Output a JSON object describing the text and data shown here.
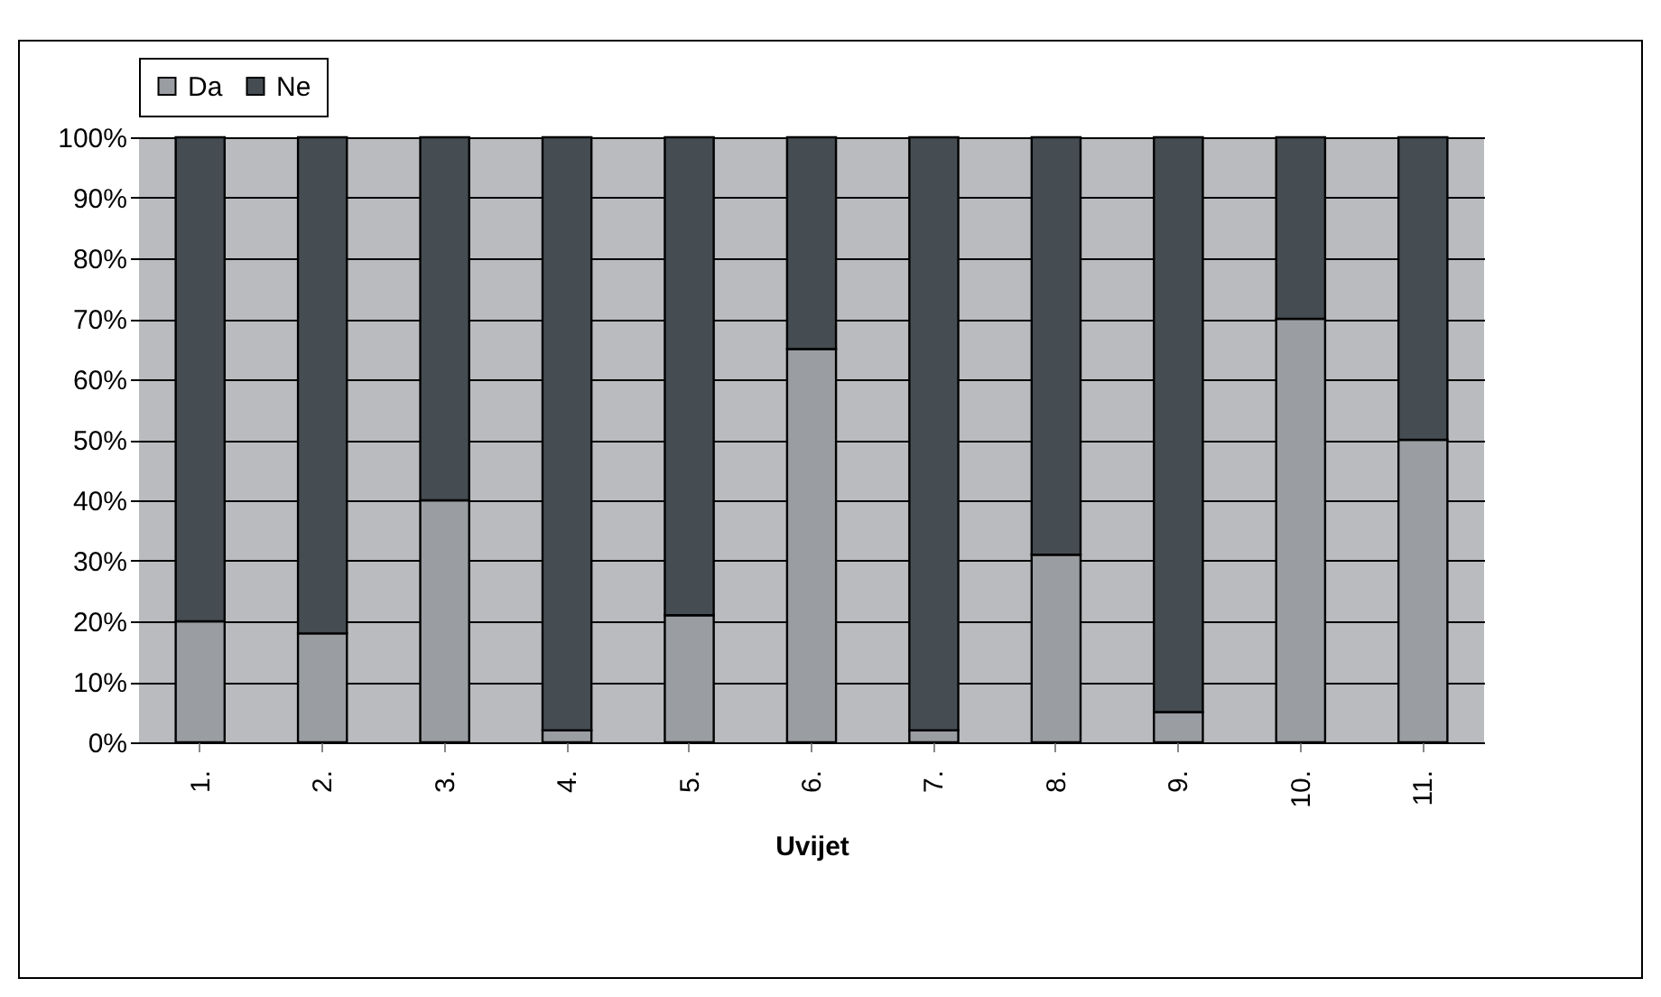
{
  "chart_data": {
    "type": "bar",
    "stacked": true,
    "xlabel": "Uvijet",
    "categories": [
      "1.",
      "2.",
      "3.",
      "4.",
      "5.",
      "6.",
      "7.",
      "8.",
      "9.",
      "10.",
      "11."
    ],
    "series": [
      {
        "name": "Da",
        "color": "#9a9ea3",
        "values": [
          20,
          18,
          40,
          2,
          21,
          65,
          2,
          31,
          5,
          70,
          50
        ]
      },
      {
        "name": "Ne",
        "color": "#454d53",
        "values": [
          80,
          82,
          60,
          98,
          79,
          35,
          98,
          69,
          95,
          30,
          50
        ]
      }
    ],
    "ylim": [
      0,
      100
    ],
    "yticks": [
      {
        "value": 0,
        "label": "0%"
      },
      {
        "value": 10,
        "label": "10%"
      },
      {
        "value": 20,
        "label": "20%"
      },
      {
        "value": 30,
        "label": "30%"
      },
      {
        "value": 40,
        "label": "40%"
      },
      {
        "value": 50,
        "label": "50%"
      },
      {
        "value": 60,
        "label": "60%"
      },
      {
        "value": 70,
        "label": "70%"
      },
      {
        "value": 80,
        "label": "80%"
      },
      {
        "value": 90,
        "label": "90%"
      },
      {
        "value": 100,
        "label": "100%"
      }
    ],
    "grid": "y",
    "legend": "top"
  }
}
